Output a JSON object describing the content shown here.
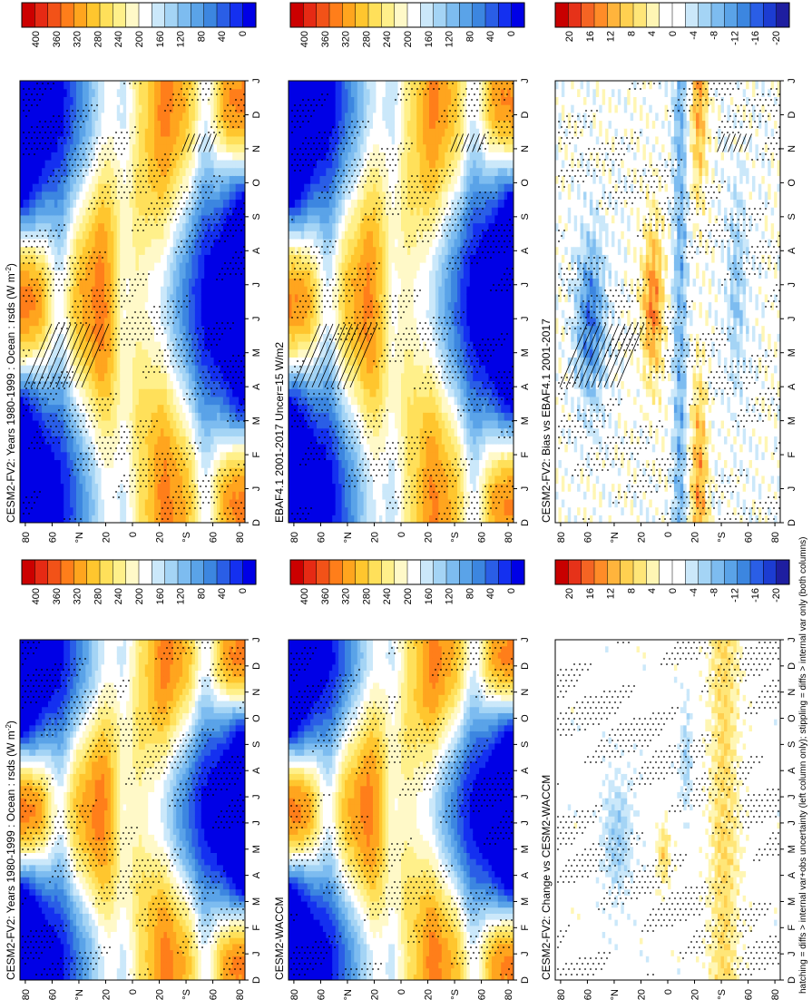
{
  "caption": "hatching = diffs > internal var+obs uncertainty (left column only); stippling = diffs > internal var only (both columns)",
  "colors": {
    "full_field_palette": [
      "#0000e6",
      "#1430f0",
      "#2a5ee6",
      "#3c86e0",
      "#5aa3e8",
      "#7dbcf0",
      "#a4d4f5",
      "#cbe8fa",
      "#ffffff",
      "#fff9c8",
      "#fff08a",
      "#ffe05a",
      "#ffc62e",
      "#ffa51e",
      "#ff7e1a",
      "#f25218",
      "#e62a14",
      "#cc0000"
    ],
    "diff_palette": [
      "#1e1ea0",
      "#1c3cd2",
      "#2a5ee6",
      "#3c86e0",
      "#5aa3e8",
      "#7dbcf0",
      "#a4d4f5",
      "#cbe8fa",
      "#ffffff",
      "#ffffff",
      "#fff6b4",
      "#ffe678",
      "#ffd050",
      "#ffb43c",
      "#ff8c28",
      "#f56423",
      "#e63219",
      "#c80000"
    ],
    "stipple": "#000000",
    "frame": "#000000"
  },
  "chart_data": [
    {
      "id": "a",
      "type": "heatmap",
      "title": "CESM2-FV2: Years 1980-1999 : Ocean : rsds (W m",
      "title_sup": "-2",
      "title_tail": ")",
      "month_ticks": [
        "D",
        "J",
        "F",
        "M",
        "A",
        "M",
        "J",
        "J",
        "A",
        "S",
        "O",
        "N",
        "D",
        "J"
      ],
      "lat_ticks": [
        "80",
        "60",
        "°N",
        "20",
        "0",
        "20",
        "°S",
        "60",
        "80"
      ],
      "colorbar_labels": [
        "400",
        "360",
        "320",
        "280",
        "240",
        "200",
        "160",
        "120",
        "80",
        "40",
        "0"
      ],
      "colorbar_range": [
        0,
        420
      ],
      "field": "full",
      "hatching": true,
      "stippling": true
    },
    {
      "id": "b",
      "type": "heatmap",
      "title": "CESM2-FV2: Years 1980-1999 : Ocean : rsds (W m",
      "title_sup": "-2",
      "title_tail": ")",
      "month_ticks": [
        "D",
        "J",
        "F",
        "M",
        "A",
        "M",
        "J",
        "J",
        "A",
        "S",
        "O",
        "N",
        "D",
        "J"
      ],
      "lat_ticks": [
        "80",
        "60",
        "°N",
        "20",
        "0",
        "20",
        "°S",
        "60",
        "80"
      ],
      "colorbar_labels": [
        "400",
        "360",
        "320",
        "280",
        "240",
        "200",
        "160",
        "120",
        "80",
        "40",
        "0"
      ],
      "colorbar_range": [
        0,
        420
      ],
      "field": "full",
      "hatching": false,
      "stippling": true
    },
    {
      "id": "c",
      "type": "heatmap",
      "title": "EBAF4.1 2001-2017 Uncer=15 W/m2",
      "month_ticks": [
        "D",
        "J",
        "F",
        "M",
        "A",
        "M",
        "J",
        "J",
        "A",
        "S",
        "O",
        "N",
        "D",
        "J"
      ],
      "lat_ticks": [
        "80",
        "60",
        "°N",
        "20",
        "0",
        "20",
        "°S",
        "60",
        "80"
      ],
      "colorbar_labels": [
        "400",
        "360",
        "320",
        "280",
        "240",
        "200",
        "160",
        "120",
        "80",
        "40",
        "0"
      ],
      "colorbar_range": [
        0,
        420
      ],
      "field": "full",
      "hatching": true,
      "stippling": true
    },
    {
      "id": "d",
      "type": "heatmap",
      "title": "CESM2-WACCM",
      "month_ticks": [
        "D",
        "J",
        "F",
        "M",
        "A",
        "M",
        "J",
        "J",
        "A",
        "S",
        "O",
        "N",
        "D",
        "J"
      ],
      "lat_ticks": [
        "80",
        "60",
        "°N",
        "20",
        "0",
        "20",
        "°S",
        "60",
        "80"
      ],
      "colorbar_labels": [
        "400",
        "360",
        "320",
        "280",
        "240",
        "200",
        "160",
        "120",
        "80",
        "40",
        "0"
      ],
      "colorbar_range": [
        0,
        420
      ],
      "field": "full",
      "hatching": false,
      "stippling": true
    },
    {
      "id": "e",
      "type": "heatmap",
      "title": "CESM2-FV2: Bias vs EBAF4.1 2001-2017",
      "month_ticks": [
        "D",
        "J",
        "F",
        "M",
        "A",
        "M",
        "J",
        "J",
        "A",
        "S",
        "O",
        "N",
        "D",
        "J"
      ],
      "lat_ticks": [
        "80",
        "60",
        "°N",
        "20",
        "0",
        "20",
        "°S",
        "60",
        "80"
      ],
      "colorbar_labels": [
        "20",
        "16",
        "12",
        "8",
        "4",
        "0",
        "-4",
        "-8",
        "-12",
        "-16",
        "-20"
      ],
      "colorbar_range": [
        -22,
        22
      ],
      "field": "bias",
      "hatching": true,
      "stippling": true
    },
    {
      "id": "f",
      "type": "heatmap",
      "title": "CESM2-FV2: Change vs CESM2-WACCM",
      "month_ticks": [
        "D",
        "J",
        "F",
        "M",
        "A",
        "M",
        "J",
        "J",
        "A",
        "S",
        "O",
        "N",
        "D",
        "J"
      ],
      "lat_ticks": [
        "80",
        "60",
        "°N",
        "20",
        "0",
        "20",
        "°S",
        "60",
        "80"
      ],
      "colorbar_labels": [
        "20",
        "16",
        "12",
        "8",
        "4",
        "0",
        "-4",
        "-8",
        "-12",
        "-16",
        "-20"
      ],
      "colorbar_range": [
        -22,
        22
      ],
      "field": "change",
      "hatching": false,
      "stippling": true
    }
  ]
}
